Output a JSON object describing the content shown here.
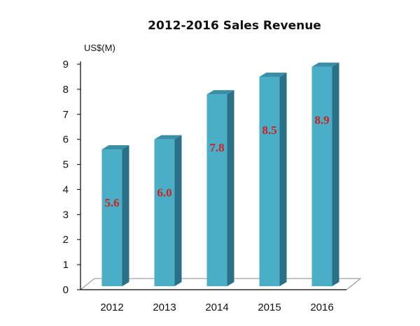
{
  "chart_data": {
    "type": "bar",
    "title": "2012-2016 Sales Revenue",
    "ylabel": "US$(M)",
    "xlabel": "",
    "categories": [
      "2012",
      "2013",
      "2014",
      "2015",
      "2016"
    ],
    "values": [
      5.6,
      6.0,
      7.8,
      8.5,
      8.9
    ],
    "data_labels": [
      "5.6",
      "6.0",
      "7.8",
      "8.5",
      "8.9"
    ],
    "y_ticks": [
      0,
      1,
      2,
      3,
      4,
      5,
      6,
      7,
      8,
      9
    ],
    "ylim": [
      0,
      9
    ],
    "grid": false,
    "legend": "none"
  },
  "colors": {
    "bar_front": "#4aaec6",
    "bar_side": "#2a7086",
    "bar_top": "#3a8ea6",
    "label": "#cc2222",
    "axis": "#000000",
    "floor": "#8a8a8a"
  }
}
